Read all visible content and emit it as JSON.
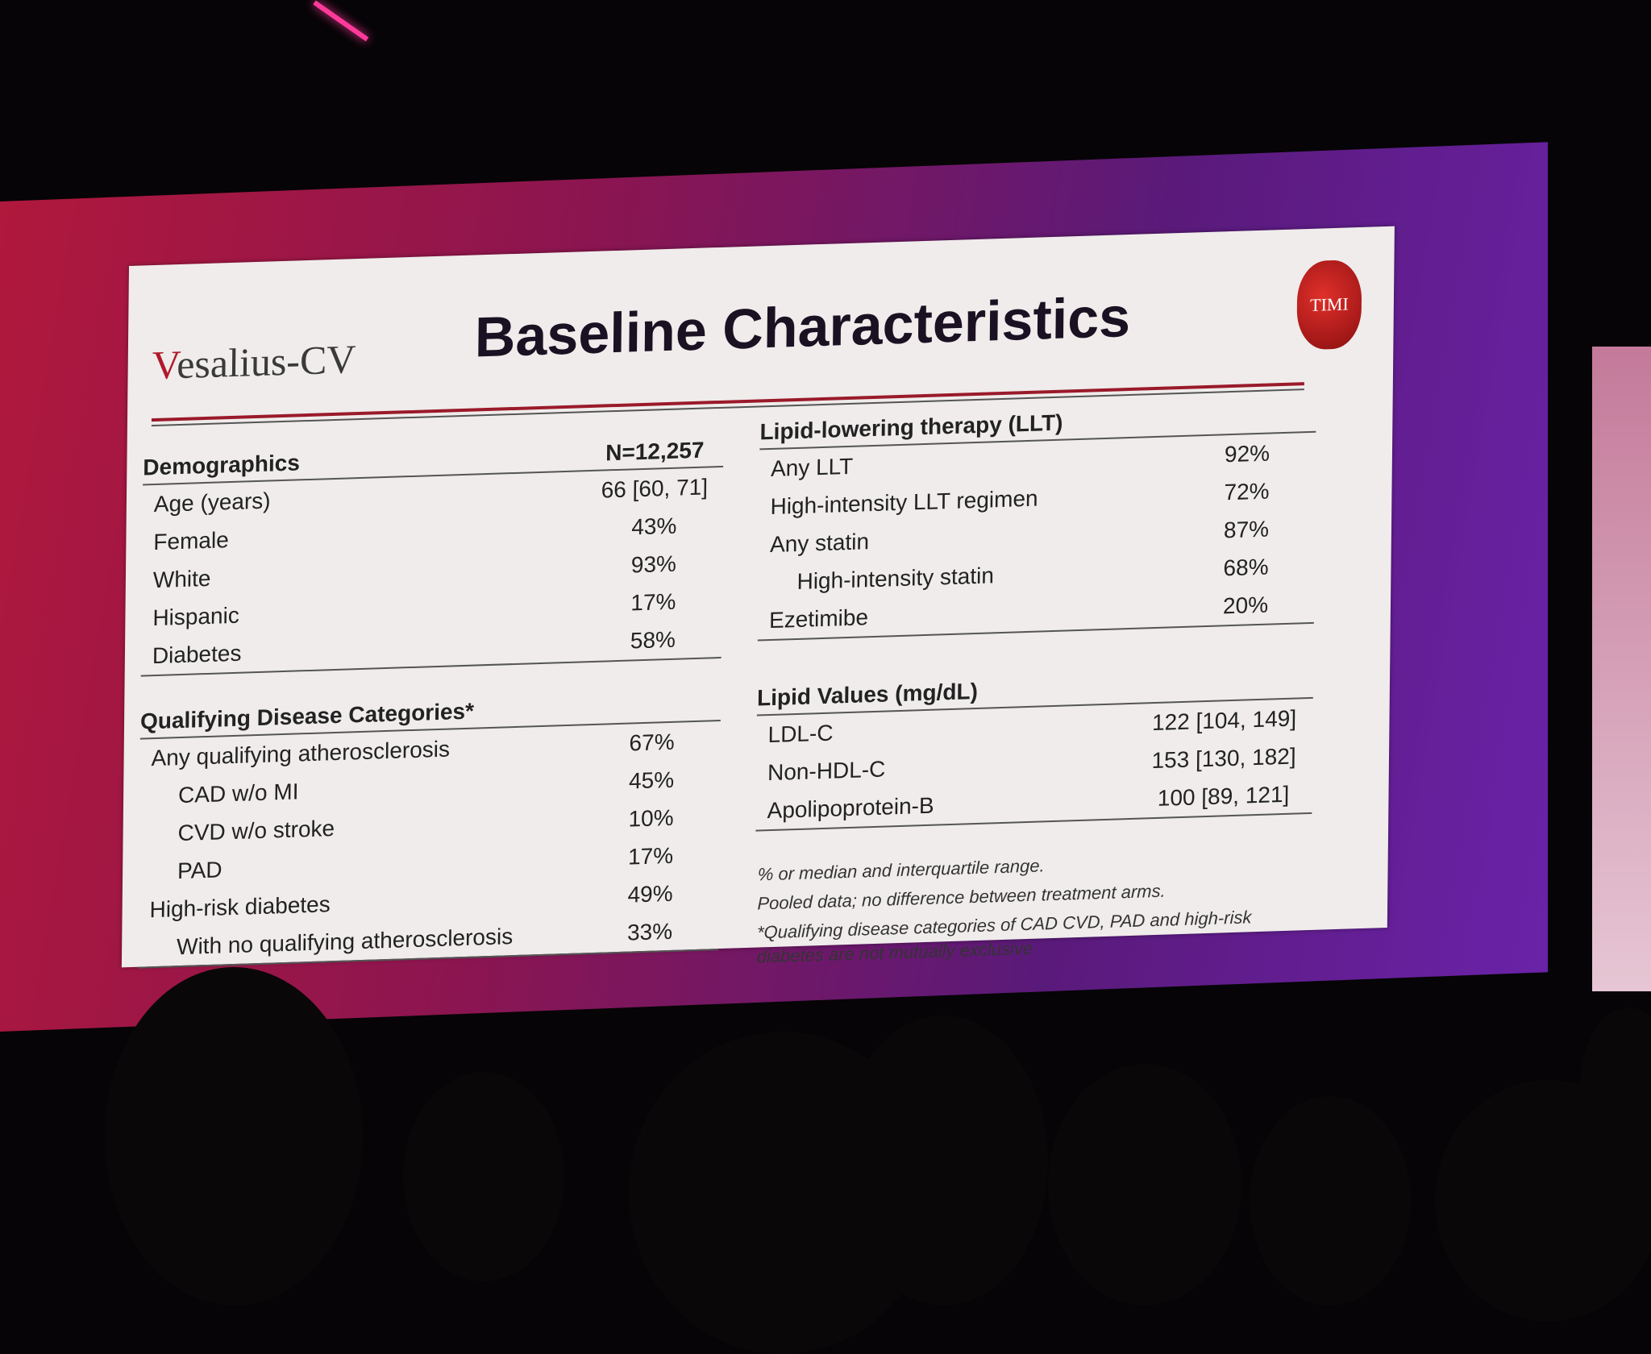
{
  "slide": {
    "logo": "Vesalius-CV",
    "title": "Baseline Characteristics",
    "badge": "TIMI",
    "demographics": {
      "heading": "Demographics",
      "n_label": "N=12,257",
      "rows": [
        {
          "label": "Age (years)",
          "value": "66 [60, 71]"
        },
        {
          "label": "Female",
          "value": "43%"
        },
        {
          "label": "White",
          "value": "93%"
        },
        {
          "label": "Hispanic",
          "value": "17%"
        },
        {
          "label": "Diabetes",
          "value": "58%"
        }
      ]
    },
    "qualifying": {
      "heading": "Qualifying Disease Categories*",
      "rows": [
        {
          "label": "Any qualifying atherosclerosis",
          "value": "67%"
        },
        {
          "label": "CAD w/o MI",
          "value": "45%"
        },
        {
          "label": "CVD w/o stroke",
          "value": "10%"
        },
        {
          "label": "PAD",
          "value": "17%"
        },
        {
          "label": "High-risk diabetes",
          "value": "49%"
        },
        {
          "label": "With no qualifying atherosclerosis",
          "value": "33%"
        }
      ]
    },
    "llt": {
      "heading": "Lipid-lowering therapy (LLT)",
      "rows": [
        {
          "label": "Any LLT",
          "value": "92%"
        },
        {
          "label": "High-intensity LLT regimen",
          "value": "72%"
        },
        {
          "label": "Any statin",
          "value": "87%"
        },
        {
          "label": "High-intensity statin",
          "value": "68%"
        },
        {
          "label": "Ezetimibe",
          "value": "20%"
        }
      ]
    },
    "lipids": {
      "heading": "Lipid Values (mg/dL)",
      "rows": [
        {
          "label": "LDL-C",
          "value": "122 [104, 149]"
        },
        {
          "label": "Non-HDL-C",
          "value": "153 [130, 182]"
        },
        {
          "label": "Apolipoprotein-B",
          "value": "100 [89, 121]"
        }
      ]
    },
    "notes": [
      "% or median and interquartile range.",
      "Pooled data; no difference between treatment arms.",
      "*Qualifying disease categories of CAD CVD, PAD and high-risk diabetes are not mutually exclusive"
    ]
  }
}
